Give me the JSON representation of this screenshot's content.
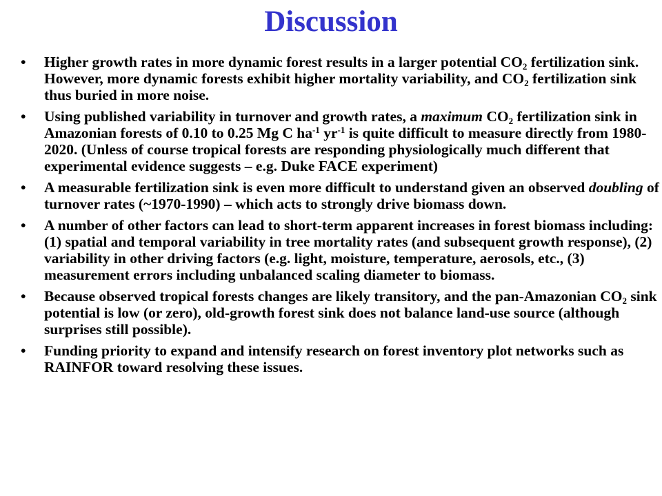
{
  "title": "Discussion",
  "bullets": [
    {
      "a": "Higher growth rates in more dynamic forest results in a larger potential CO",
      "a_sub": "2",
      "b": " fertilization sink.  However, more dynamic forests exhibit higher mortality variability, and CO",
      "b_sub": "2",
      "c": " fertilization sink thus buried in more noise."
    },
    {
      "a": "Using published variability in turnover and growth rates, a ",
      "a_em": "maximum",
      "b": " CO",
      "b_sub": "2",
      "c": " fertilization sink in Amazonian forests of 0.10 to 0.25 Mg C ha",
      "c_sup": "-1",
      "d": " yr",
      "d_sup": "-1",
      "e": " is quite difficult to measure directly from 1980-2020. (Unless of course tropical forests are responding physiologically much different that experimental evidence suggests – e.g. Duke FACE experiment)"
    },
    {
      "a": "A measurable fertilization sink is even more difficult to understand given an observed ",
      "a_em": "doubling",
      "b": " of turnover rates (~1970-1990) – which acts to strongly drive biomass down."
    },
    {
      "a": "A number of other factors can lead to short-term apparent increases in forest biomass including: (1) spatial and temporal variability in tree mortality rates (and subsequent growth response), (2) variability in other driving factors (e.g. light, moisture, temperature, aerosols, etc., (3) measurement errors including unbalanced scaling diameter to biomass."
    },
    {
      "a": "Because observed tropical forests changes are likely transitory, and the pan-Amazonian CO",
      "a_sub": "2",
      "b": " sink potential is low (or zero), old-growth forest sink does not balance land-use source (although surprises still possible)."
    },
    {
      "a": "Funding priority to expand and intensify research on forest inventory plot networks such as RAINFOR toward resolving these issues."
    }
  ]
}
